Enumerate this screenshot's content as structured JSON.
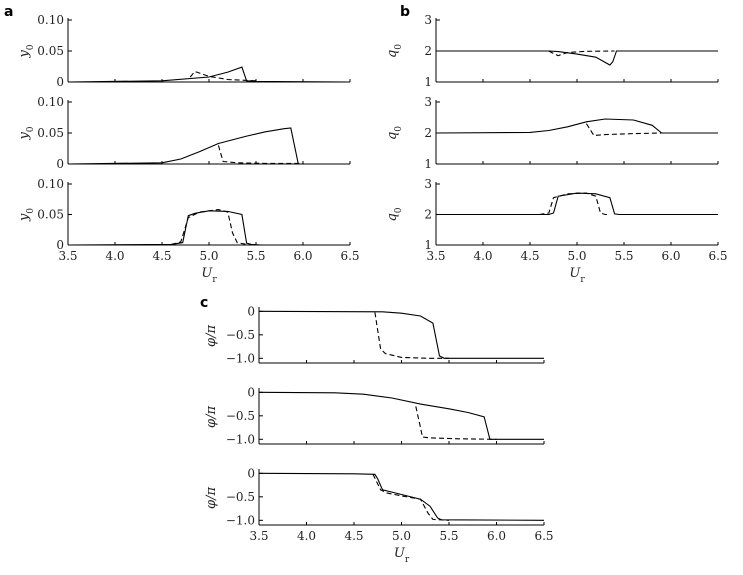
{
  "panel_letters": [
    "a",
    "b",
    "c"
  ],
  "chart_data": [
    {
      "type": "line",
      "panel": "a",
      "row": 1,
      "ylabel": "y",
      "ylabel_sub": "0",
      "xlabel": "",
      "xlabel_sub": "",
      "xlim": [
        3.5,
        6.5
      ],
      "ylim": [
        0,
        0.1
      ],
      "xticks": [],
      "xtick_labels": [],
      "yticks": [
        0,
        0.05,
        0.1
      ],
      "ytick_labels": [
        "0",
        "0.05",
        "0.10"
      ],
      "series": [
        {
          "style": "solid",
          "x": [
            3.5,
            4.5,
            5.0,
            5.2,
            5.35,
            5.4,
            5.5,
            6.5
          ],
          "y": [
            0.0,
            0.002,
            0.008,
            0.016,
            0.024,
            0.002,
            0.001,
            0.0
          ]
        },
        {
          "style": "dashed",
          "x": [
            4.8,
            4.85,
            5.0,
            5.2,
            5.5
          ],
          "y": [
            0.008,
            0.017,
            0.009,
            0.004,
            0.002
          ]
        }
      ]
    },
    {
      "type": "line",
      "panel": "a",
      "row": 2,
      "ylabel": "y",
      "ylabel_sub": "0",
      "xlabel": "",
      "xlabel_sub": "",
      "xlim": [
        3.5,
        6.5
      ],
      "ylim": [
        0,
        0.1
      ],
      "xticks": [],
      "xtick_labels": [],
      "yticks": [
        0,
        0.05,
        0.1
      ],
      "ytick_labels": [
        "0",
        "0.05",
        "0.10"
      ],
      "series": [
        {
          "style": "solid",
          "x": [
            3.5,
            4.5,
            4.7,
            4.9,
            5.1,
            5.4,
            5.6,
            5.8,
            5.87,
            5.95,
            6.5
          ],
          "y": [
            0.0,
            0.002,
            0.008,
            0.02,
            0.033,
            0.045,
            0.052,
            0.057,
            0.058,
            0.0,
            0.0
          ]
        },
        {
          "style": "dashed",
          "x": [
            5.1,
            5.15,
            5.3,
            5.6,
            6.0
          ],
          "y": [
            0.03,
            0.004,
            0.002,
            0.001,
            0.001
          ]
        }
      ]
    },
    {
      "type": "line",
      "panel": "a",
      "row": 3,
      "ylabel": "y",
      "ylabel_sub": "0",
      "xlabel": "U",
      "xlabel_sub": "r",
      "xlim": [
        3.5,
        6.5
      ],
      "ylim": [
        0,
        0.1
      ],
      "xticks": [
        3.5,
        4.0,
        4.5,
        5.0,
        5.5,
        6.0,
        6.5
      ],
      "xtick_labels": [
        "3.5",
        "4.0",
        "4.5",
        "5.0",
        "5.5",
        "6.0",
        "6.5"
      ],
      "yticks": [
        0,
        0.05,
        0.1
      ],
      "ytick_labels": [
        "0",
        "0.05",
        "0.10"
      ],
      "series": [
        {
          "style": "solid",
          "x": [
            3.5,
            4.6,
            4.72,
            4.78,
            4.85,
            5.0,
            5.2,
            5.35,
            5.4,
            5.45,
            5.55,
            6.5
          ],
          "y": [
            0.0,
            0.001,
            0.004,
            0.048,
            0.052,
            0.056,
            0.055,
            0.05,
            0.003,
            0.001,
            0.0,
            0.0
          ]
        },
        {
          "style": "dashed",
          "x": [
            4.6,
            4.7,
            4.78,
            4.9,
            5.1,
            5.2,
            5.25,
            5.3,
            5.4
          ],
          "y": [
            0.001,
            0.005,
            0.045,
            0.054,
            0.058,
            0.054,
            0.02,
            0.004,
            0.001
          ]
        }
      ]
    },
    {
      "type": "line",
      "panel": "b",
      "row": 1,
      "ylabel": "q",
      "ylabel_sub": "0",
      "xlabel": "",
      "xlabel_sub": "",
      "xlim": [
        3.5,
        6.5
      ],
      "ylim": [
        1,
        3
      ],
      "xticks": [],
      "xtick_labels": [],
      "yticks": [
        1,
        2,
        3
      ],
      "ytick_labels": [
        "1",
        "2",
        "3"
      ],
      "series": [
        {
          "style": "solid",
          "x": [
            3.5,
            4.7,
            4.8,
            5.0,
            5.2,
            5.35,
            5.38,
            5.42,
            5.5,
            6.5
          ],
          "y": [
            2.0,
            2.0,
            1.98,
            1.9,
            1.8,
            1.55,
            1.65,
            2.0,
            2.0,
            2.0
          ]
        },
        {
          "style": "dashed",
          "x": [
            4.7,
            4.75,
            4.8,
            4.9,
            5.1,
            5.4
          ],
          "y": [
            2.0,
            1.92,
            1.85,
            1.95,
            1.99,
            2.0
          ]
        }
      ]
    },
    {
      "type": "line",
      "panel": "b",
      "row": 2,
      "ylabel": "q",
      "ylabel_sub": "0",
      "xlabel": "",
      "xlabel_sub": "",
      "xlim": [
        3.5,
        6.5
      ],
      "ylim": [
        1,
        3
      ],
      "xticks": [],
      "xtick_labels": [],
      "yticks": [
        1,
        2,
        3
      ],
      "ytick_labels": [
        "1",
        "2",
        "3"
      ],
      "series": [
        {
          "style": "solid",
          "x": [
            3.5,
            4.5,
            4.7,
            4.9,
            5.1,
            5.3,
            5.6,
            5.8,
            5.9,
            6.5
          ],
          "y": [
            2.0,
            2.02,
            2.08,
            2.2,
            2.36,
            2.45,
            2.42,
            2.25,
            2.0,
            2.0
          ]
        },
        {
          "style": "dashed",
          "x": [
            5.1,
            5.18,
            5.3,
            5.6,
            5.9
          ],
          "y": [
            2.3,
            1.92,
            1.95,
            1.98,
            2.0
          ]
        }
      ]
    },
    {
      "type": "line",
      "panel": "b",
      "row": 3,
      "ylabel": "q",
      "ylabel_sub": "0",
      "xlabel": "U",
      "xlabel_sub": "r",
      "xlim": [
        3.5,
        6.5
      ],
      "ylim": [
        1,
        3
      ],
      "xticks": [
        3.5,
        4.0,
        4.5,
        5.0,
        5.5,
        6.0,
        6.5
      ],
      "xtick_labels": [
        "3.5",
        "4.0",
        "4.5",
        "5.0",
        "5.5",
        "6.0",
        "6.5"
      ],
      "yticks": [
        1,
        2,
        3
      ],
      "ytick_labels": [
        "1",
        "2",
        "3"
      ],
      "series": [
        {
          "style": "solid",
          "x": [
            3.5,
            4.7,
            4.75,
            4.8,
            5.0,
            5.2,
            5.35,
            5.4,
            5.45,
            6.5
          ],
          "y": [
            2.0,
            2.0,
            2.05,
            2.6,
            2.7,
            2.68,
            2.55,
            2.02,
            2.0,
            2.0
          ]
        },
        {
          "style": "dashed",
          "x": [
            4.6,
            4.7,
            4.75,
            4.9,
            5.1,
            5.2,
            5.25,
            5.3,
            5.35
          ],
          "y": [
            2.0,
            2.05,
            2.55,
            2.68,
            2.7,
            2.6,
            2.05,
            2.0,
            2.0
          ]
        }
      ]
    },
    {
      "type": "line",
      "panel": "c",
      "row": 1,
      "ylabel": "φ/π",
      "ylabel_sub": "",
      "xlabel": "",
      "xlabel_sub": "",
      "xlim": [
        3.5,
        6.5
      ],
      "ylim": [
        -1.1,
        0.05
      ],
      "xticks": [],
      "xtick_labels": [],
      "yticks": [
        0,
        -0.5,
        -1.0
      ],
      "ytick_labels": [
        "0",
        "−0.5",
        "−1.0"
      ],
      "series": [
        {
          "style": "solid",
          "x": [
            3.5,
            4.8,
            5.0,
            5.2,
            5.33,
            5.4,
            5.45,
            6.5
          ],
          "y": [
            0.0,
            -0.01,
            -0.04,
            -0.1,
            -0.25,
            -0.95,
            -1.0,
            -1.0
          ]
        },
        {
          "style": "dashed",
          "x": [
            4.72,
            4.78,
            4.83,
            5.0,
            5.3,
            5.5
          ],
          "y": [
            -0.02,
            -0.8,
            -0.9,
            -0.98,
            -1.0,
            -1.0
          ]
        }
      ]
    },
    {
      "type": "line",
      "panel": "c",
      "row": 2,
      "ylabel": "φ/π",
      "ylabel_sub": "",
      "xlabel": "",
      "xlabel_sub": "",
      "xlim": [
        3.5,
        6.5
      ],
      "ylim": [
        -1.1,
        0.05
      ],
      "xticks": [],
      "xtick_labels": [],
      "yticks": [
        0,
        -0.5,
        -1.0
      ],
      "ytick_labels": [
        "0",
        "−0.5",
        "−1.0"
      ],
      "series": [
        {
          "style": "solid",
          "x": [
            3.5,
            4.3,
            4.6,
            4.9,
            5.2,
            5.5,
            5.7,
            5.87,
            5.93,
            6.5
          ],
          "y": [
            0.0,
            -0.01,
            -0.04,
            -0.12,
            -0.25,
            -0.35,
            -0.43,
            -0.52,
            -1.0,
            -1.0
          ]
        },
        {
          "style": "dashed",
          "x": [
            5.15,
            5.2,
            5.22,
            5.3,
            5.6,
            6.0
          ],
          "y": [
            -0.3,
            -0.75,
            -0.95,
            -0.97,
            -0.99,
            -1.0
          ]
        }
      ]
    },
    {
      "type": "line",
      "panel": "c",
      "row": 3,
      "ylabel": "φ/π",
      "ylabel_sub": "",
      "xlabel": "U",
      "xlabel_sub": "r",
      "xlim": [
        3.5,
        6.5
      ],
      "ylim": [
        -1.1,
        0.05
      ],
      "xticks": [
        3.5,
        4.0,
        4.5,
        5.0,
        5.5,
        6.0,
        6.5
      ],
      "xtick_labels": [
        "3.5",
        "4.0",
        "4.5",
        "5.0",
        "5.5",
        "6.0",
        "6.5"
      ],
      "yticks": [
        0,
        -0.5,
        -1.0
      ],
      "ytick_labels": [
        "0",
        "−0.5",
        "−1.0"
      ],
      "series": [
        {
          "style": "solid",
          "x": [
            3.5,
            4.5,
            4.72,
            4.75,
            4.8,
            5.0,
            5.2,
            5.3,
            5.38,
            5.42,
            6.5
          ],
          "y": [
            0.0,
            -0.01,
            -0.02,
            -0.12,
            -0.35,
            -0.45,
            -0.55,
            -0.7,
            -0.95,
            -0.99,
            -1.0
          ]
        },
        {
          "style": "dashed",
          "x": [
            4.7,
            4.78,
            4.85,
            5.0,
            5.2,
            5.28,
            5.33,
            5.5
          ],
          "y": [
            -0.02,
            -0.35,
            -0.42,
            -0.48,
            -0.55,
            -0.85,
            -0.98,
            -1.0
          ]
        }
      ]
    }
  ]
}
